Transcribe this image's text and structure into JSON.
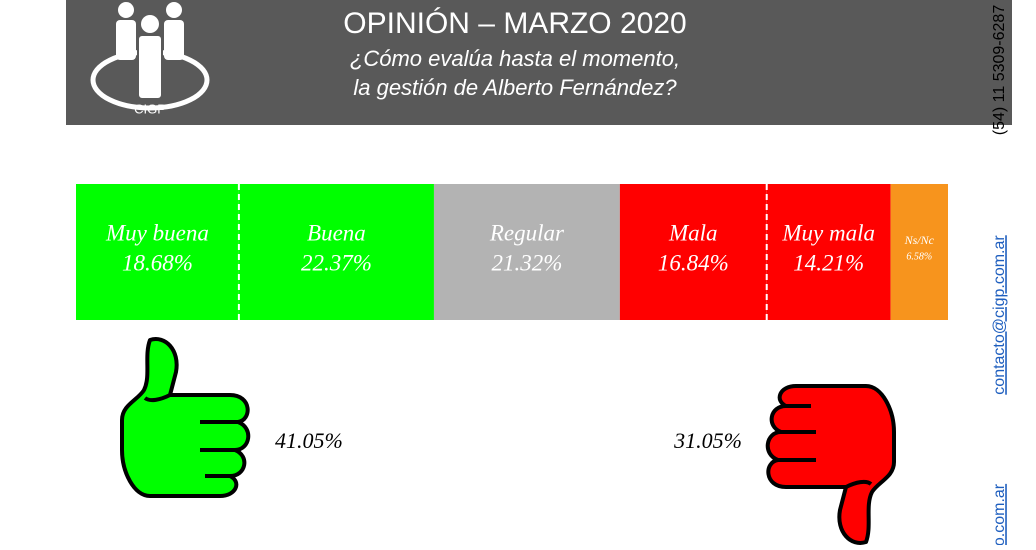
{
  "logo_text": "CIGP",
  "contacts": {
    "phone": "(54) 11 5309-6287",
    "email": "contacto@cigp.com.ar",
    "web": "o.com.ar"
  },
  "chart_data": {
    "type": "stacked-bar",
    "title": "OPINIÓN – MARZO 2020",
    "subtitle": [
      "¿Cómo evalúa hasta el momento,",
      "la gestión de Alberto Fernández?"
    ],
    "categories": [
      "Muy buena",
      "Buena",
      "Regular",
      "Mala",
      "Muy mala",
      "Ns/Nc"
    ],
    "values": [
      18.68,
      22.37,
      21.32,
      16.84,
      14.21,
      6.58
    ],
    "value_labels": [
      "18.68%",
      "22.37%",
      "21.32%",
      "16.84%",
      "14.21%",
      "6.58%"
    ],
    "colors": [
      "#00ff00",
      "#00ff00",
      "#b3b3b3",
      "#ff0000",
      "#ff0000",
      "#f7941d"
    ],
    "xlim": [
      0,
      100
    ],
    "annotations": [
      {
        "value": 41.05,
        "label": "41.05%"
      },
      {
        "value": 31.05,
        "label": "31.05%"
      }
    ]
  }
}
